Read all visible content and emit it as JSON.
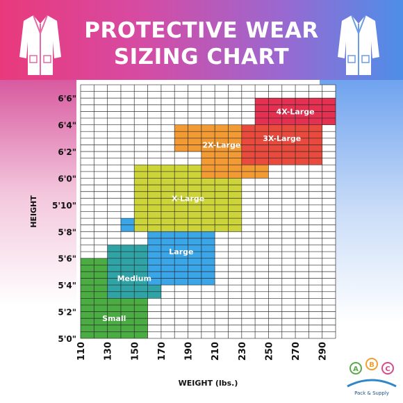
{
  "title_line1": "PROTECTIVE WEAR",
  "title_line2": "SIZING CHART",
  "logo": {
    "letters": [
      "A",
      "B",
      "C"
    ],
    "tagline": "Pack & Supply"
  },
  "icons": [
    "lab-coat-icon",
    "lab-coat-icon"
  ],
  "chart_data": {
    "type": "heatmap",
    "title": "PROTECTIVE WEAR SIZING CHART",
    "xlabel": "WEIGHT (lbs.)",
    "ylabel": "HEIGHT",
    "x_ticks": [
      "110",
      "130",
      "150",
      "170",
      "190",
      "210",
      "230",
      "250",
      "270",
      "290"
    ],
    "y_ticks": [
      "5'0\"",
      "5'2\"",
      "5'4\"",
      "5'6\"",
      "5'8\"",
      "5'10\"",
      "6'0\"",
      "6'2\"",
      "6'4\"",
      "6'6\""
    ],
    "xlim": [
      110,
      300
    ],
    "ylim_inches": [
      60,
      79
    ],
    "grid": true,
    "sizes": [
      {
        "name": "Small",
        "color": "#4aac43",
        "rects": [
          {
            "x": [
              110,
              160
            ],
            "y_in": [
              60,
              65
            ]
          },
          {
            "x": [
              110,
              130
            ],
            "y_in": [
              65,
              66
            ]
          }
        ]
      },
      {
        "name": "Medium",
        "color": "#2fa3a6",
        "rects": [
          {
            "x": [
              130,
              170
            ],
            "y_in": [
              63,
              66
            ]
          },
          {
            "x": [
              130,
              160
            ],
            "y_in": [
              66,
              67
            ]
          }
        ]
      },
      {
        "name": "Large",
        "color": "#3aa6e8",
        "rects": [
          {
            "x": [
              160,
              210
            ],
            "y_in": [
              64,
              68
            ]
          },
          {
            "x": [
              140,
              190
            ],
            "y_in": [
              68,
              69
            ]
          }
        ]
      },
      {
        "name": "X-Large",
        "color": "#cdd43a",
        "rects": [
          {
            "x": [
              150,
              230
            ],
            "y_in": [
              68,
              73
            ]
          }
        ]
      },
      {
        "name": "2X-Large",
        "color": "#f29a33",
        "rects": [
          {
            "x": [
              180,
              250
            ],
            "y_in": [
              74,
              76
            ]
          },
          {
            "x": [
              200,
              250
            ],
            "y_in": [
              72,
              74
            ]
          }
        ]
      },
      {
        "name": "3X-Large",
        "color": "#e84b3e",
        "rects": [
          {
            "x": [
              230,
              290
            ],
            "y_in": [
              73,
              76
            ]
          }
        ]
      },
      {
        "name": "4X-Large",
        "color": "#e43151",
        "rects": [
          {
            "x": [
              240,
              300
            ],
            "y_in": [
              76,
              78
            ]
          }
        ]
      }
    ],
    "label_positions": {
      "Small": {
        "x": 135,
        "y_in": 61.5
      },
      "Medium": {
        "x": 150,
        "y_in": 64.5
      },
      "Large": {
        "x": 185,
        "y_in": 66.5
      },
      "X-Large": {
        "x": 190,
        "y_in": 70.5
      },
      "2X-Large": {
        "x": 215,
        "y_in": 74.5
      },
      "3X-Large": {
        "x": 260,
        "y_in": 75
      },
      "4X-Large": {
        "x": 270,
        "y_in": 77
      }
    }
  }
}
